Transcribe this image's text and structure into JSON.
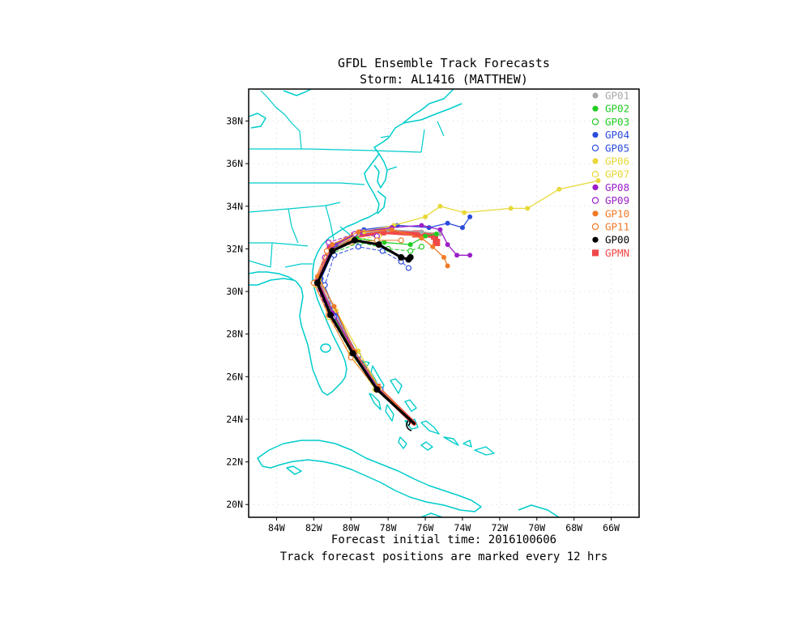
{
  "title": "GFDL Ensemble Track Forecasts",
  "subtitle": "Storm: AL1416 (MATTHEW)",
  "footer": {
    "init_label": "Forecast initial time: 2016100606",
    "note": "Track forecast positions are marked every 12 hrs"
  },
  "map": {
    "lon_range": [
      -85.5,
      -64.5
    ],
    "lat_range": [
      19.4,
      39.5
    ],
    "coastline_color": "#00cccc",
    "lon_ticks": [
      "84W",
      "82W",
      "80W",
      "78W",
      "76W",
      "74W",
      "72W",
      "70W",
      "68W",
      "66W"
    ],
    "lat_ticks": [
      "38N",
      "36N",
      "34N",
      "32N",
      "30N",
      "28N",
      "26N",
      "24N",
      "22N",
      "20N"
    ],
    "grid": "dotted"
  },
  "legend": [
    {
      "name": "GP01",
      "color": "#a9a9a9",
      "marker": "filled-circle"
    },
    {
      "name": "GP02",
      "color": "#22cc22",
      "marker": "filled-circle"
    },
    {
      "name": "GP03",
      "color": "#22cc22",
      "marker": "open-circle"
    },
    {
      "name": "GP04",
      "color": "#2b4bdc",
      "marker": "filled-circle"
    },
    {
      "name": "GP05",
      "color": "#2b4bdc",
      "marker": "open-circle"
    },
    {
      "name": "GP06",
      "color": "#e8d83a",
      "marker": "filled-circle"
    },
    {
      "name": "GP07",
      "color": "#e8d83a",
      "marker": "open-circle"
    },
    {
      "name": "GP08",
      "color": "#9b1fc8",
      "marker": "filled-circle"
    },
    {
      "name": "GP09",
      "color": "#9b1fc8",
      "marker": "open-circle"
    },
    {
      "name": "GP10",
      "color": "#f07a28",
      "marker": "filled-circle"
    },
    {
      "name": "GP11",
      "color": "#f07a28",
      "marker": "open-circle"
    },
    {
      "name": "GP00",
      "color": "#000000",
      "marker": "filled-circle"
    },
    {
      "name": "GPMN",
      "color": "#f04848",
      "marker": "filled-square"
    }
  ],
  "tracks": [
    {
      "name": "GPMN",
      "color": "#f04848",
      "width": 5.5,
      "marker": "filled-square",
      "points": [
        [
          -76.6,
          23.8
        ],
        [
          -78.6,
          25.5
        ],
        [
          -79.8,
          27.1
        ],
        [
          -81.0,
          28.9
        ],
        [
          -81.8,
          30.4
        ],
        [
          -81.1,
          32.0
        ],
        [
          -79.8,
          32.6
        ],
        [
          -78.3,
          32.8
        ],
        [
          -76.5,
          32.7
        ],
        [
          -75.5,
          32.6
        ],
        [
          -75.4,
          32.3
        ]
      ]
    },
    {
      "name": "GP01",
      "color": "#a9a9a9",
      "width": 1.3,
      "marker": "filled-circle",
      "points": [
        [
          -76.6,
          23.8
        ],
        [
          -78.5,
          25.5
        ],
        [
          -79.7,
          27.1
        ],
        [
          -80.9,
          29.0
        ],
        [
          -81.7,
          30.5
        ],
        [
          -81.0,
          32.0
        ],
        [
          -79.6,
          32.7
        ],
        [
          -78.0,
          32.9
        ],
        [
          -76.2,
          32.8
        ],
        [
          -75.2,
          32.7
        ]
      ]
    },
    {
      "name": "GP02",
      "color": "#22cc22",
      "width": 1.3,
      "marker": "filled-circle",
      "points": [
        [
          -76.6,
          23.8
        ],
        [
          -78.5,
          25.5
        ],
        [
          -79.8,
          27.0
        ],
        [
          -81.0,
          28.9
        ],
        [
          -81.8,
          30.3
        ],
        [
          -81.1,
          31.9
        ],
        [
          -79.7,
          32.5
        ],
        [
          -78.2,
          32.3
        ],
        [
          -76.8,
          32.2
        ],
        [
          -76.0,
          32.6
        ],
        [
          -75.4,
          32.7
        ]
      ]
    },
    {
      "name": "GP03",
      "color": "#22cc22",
      "width": 1.0,
      "marker": "open-circle",
      "dash": "4,3",
      "points": [
        [
          -76.6,
          23.8
        ],
        [
          -78.6,
          25.4
        ],
        [
          -79.9,
          27.0
        ],
        [
          -81.1,
          28.8
        ],
        [
          -81.8,
          30.3
        ],
        [
          -81.0,
          31.8
        ],
        [
          -79.5,
          32.3
        ],
        [
          -78.0,
          32.0
        ],
        [
          -76.8,
          31.9
        ],
        [
          -76.2,
          32.1
        ]
      ]
    },
    {
      "name": "GP04",
      "color": "#2b4bdc",
      "width": 1.3,
      "marker": "filled-circle",
      "points": [
        [
          -76.6,
          23.8
        ],
        [
          -78.6,
          25.5
        ],
        [
          -79.7,
          27.1
        ],
        [
          -80.8,
          29.0
        ],
        [
          -81.6,
          30.6
        ],
        [
          -80.8,
          32.2
        ],
        [
          -79.3,
          32.9
        ],
        [
          -77.5,
          33.1
        ],
        [
          -75.8,
          33.0
        ],
        [
          -74.8,
          33.2
        ],
        [
          -74.0,
          33.0
        ],
        [
          -73.6,
          33.5
        ]
      ]
    },
    {
      "name": "GP05",
      "color": "#2b4bdc",
      "width": 1.0,
      "marker": "open-circle",
      "dash": "4,3",
      "points": [
        [
          -76.6,
          23.8
        ],
        [
          -78.4,
          25.4
        ],
        [
          -79.6,
          27.0
        ],
        [
          -80.9,
          28.8
        ],
        [
          -81.4,
          30.3
        ],
        [
          -80.9,
          31.7
        ],
        [
          -79.6,
          32.1
        ],
        [
          -78.3,
          31.9
        ],
        [
          -77.3,
          31.4
        ],
        [
          -76.9,
          31.1
        ]
      ]
    },
    {
      "name": "GP06",
      "color": "#e8d83a",
      "width": 1.3,
      "marker": "filled-circle",
      "points": [
        [
          -76.6,
          23.8
        ],
        [
          -78.5,
          25.5
        ],
        [
          -79.6,
          27.2
        ],
        [
          -80.8,
          29.1
        ],
        [
          -81.7,
          30.6
        ],
        [
          -81.0,
          32.1
        ],
        [
          -79.3,
          32.8
        ],
        [
          -77.7,
          33.1
        ],
        [
          -76.0,
          33.5
        ],
        [
          -75.2,
          34.0
        ],
        [
          -73.9,
          33.7
        ],
        [
          -71.4,
          33.9
        ],
        [
          -70.5,
          33.9
        ],
        [
          -68.8,
          34.8
        ],
        [
          -66.7,
          35.2
        ]
      ]
    },
    {
      "name": "GP07",
      "color": "#e8d83a",
      "width": 1.0,
      "marker": "open-circle",
      "dash": "4,3",
      "points": [
        [
          -76.6,
          23.8
        ],
        [
          -78.7,
          25.4
        ],
        [
          -80.0,
          27.0
        ],
        [
          -81.2,
          28.8
        ],
        [
          -81.9,
          30.3
        ],
        [
          -81.2,
          31.8
        ],
        [
          -79.9,
          32.4
        ],
        [
          -78.5,
          32.6
        ]
      ]
    },
    {
      "name": "GP08",
      "color": "#9b1fc8",
      "width": 1.3,
      "marker": "filled-circle",
      "points": [
        [
          -76.6,
          23.8
        ],
        [
          -78.6,
          25.5
        ],
        [
          -79.8,
          27.2
        ],
        [
          -81.0,
          29.0
        ],
        [
          -81.8,
          30.5
        ],
        [
          -81.0,
          32.1
        ],
        [
          -79.5,
          32.8
        ],
        [
          -77.8,
          33.0
        ],
        [
          -76.2,
          33.1
        ],
        [
          -75.2,
          32.9
        ],
        [
          -74.8,
          32.2
        ],
        [
          -74.3,
          31.7
        ],
        [
          -73.6,
          31.7
        ]
      ]
    },
    {
      "name": "GP09",
      "color": "#9b1fc8",
      "width": 1.0,
      "marker": "open-circle",
      "dash": "4,3",
      "points": [
        [
          -76.6,
          23.8
        ],
        [
          -78.6,
          25.4
        ],
        [
          -79.9,
          27.1
        ],
        [
          -81.2,
          28.9
        ],
        [
          -81.9,
          30.4
        ],
        [
          -81.4,
          31.6
        ],
        [
          -81.2,
          32.3
        ],
        [
          -79.8,
          32.7
        ],
        [
          -78.6,
          32.6
        ]
      ]
    },
    {
      "name": "GP10",
      "color": "#f07a28",
      "width": 1.3,
      "marker": "filled-circle",
      "points": [
        [
          -76.6,
          23.8
        ],
        [
          -78.5,
          25.5
        ],
        [
          -79.8,
          27.2
        ],
        [
          -80.9,
          29.3
        ],
        [
          -81.8,
          30.7
        ],
        [
          -81.0,
          32.2
        ],
        [
          -79.6,
          32.8
        ],
        [
          -77.8,
          32.9
        ],
        [
          -76.2,
          32.5
        ],
        [
          -75.6,
          32.1
        ],
        [
          -75.0,
          31.6
        ],
        [
          -74.8,
          31.2
        ]
      ]
    },
    {
      "name": "GP11",
      "color": "#f07a28",
      "width": 1.0,
      "marker": "open-circle",
      "points": [
        [
          -76.6,
          23.8
        ],
        [
          -78.6,
          25.4
        ],
        [
          -80.0,
          26.9
        ],
        [
          -81.2,
          28.9
        ],
        [
          -82.0,
          30.4
        ],
        [
          -81.3,
          31.9
        ],
        [
          -80.0,
          32.3
        ],
        [
          -78.6,
          32.4
        ],
        [
          -77.3,
          32.4
        ]
      ]
    },
    {
      "name": "GP00",
      "color": "#000000",
      "width": 3.2,
      "marker": "filled-circle",
      "points": [
        [
          -76.6,
          23.8
        ],
        [
          -78.6,
          25.4
        ],
        [
          -79.9,
          27.1
        ],
        [
          -81.1,
          28.9
        ],
        [
          -81.8,
          30.4
        ],
        [
          -81.0,
          31.9
        ],
        [
          -79.8,
          32.4
        ],
        [
          -78.5,
          32.2
        ],
        [
          -77.3,
          31.6
        ],
        [
          -76.9,
          31.5
        ],
        [
          -76.8,
          31.6
        ]
      ]
    }
  ]
}
